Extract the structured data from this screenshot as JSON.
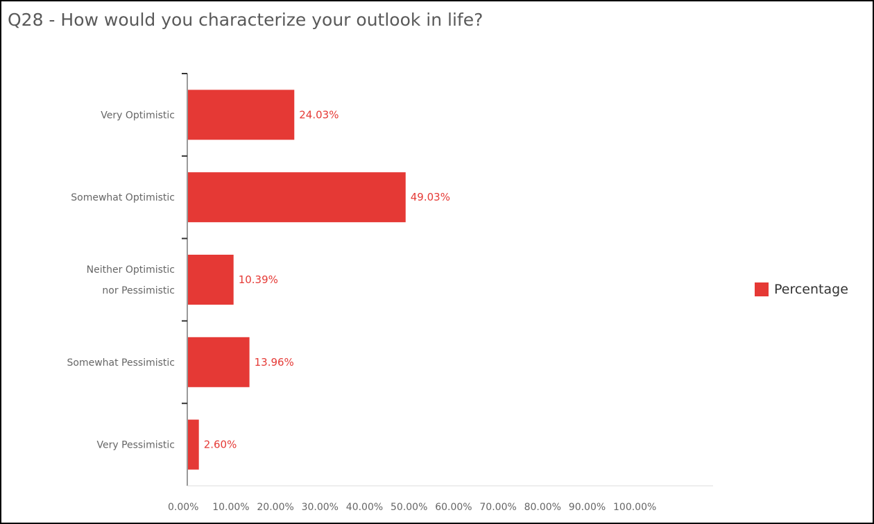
{
  "title": "Q28 - How would you characterize your outlook in life?",
  "chart_data": {
    "type": "bar",
    "orientation": "horizontal",
    "title": "Q28 - How would you characterize your outlook in life?",
    "categories": [
      [
        "Very Optimistic"
      ],
      [
        "Somewhat Optimistic"
      ],
      [
        "Neither Optimistic",
        "nor Pessimistic"
      ],
      [
        "Somewhat Pessimistic"
      ],
      [
        "Very Pessimistic"
      ]
    ],
    "series": [
      {
        "name": "Percentage",
        "values": [
          24.03,
          49.03,
          10.39,
          13.96,
          2.6
        ],
        "labels": [
          "24.03%",
          "49.03%",
          "10.39%",
          "13.96%",
          "2.60%"
        ]
      }
    ],
    "xlim": [
      0,
      100
    ],
    "xticks": [
      "0.00%",
      "10.00%",
      "20.00%",
      "30.00%",
      "40.00%",
      "50.00%",
      "60.00%",
      "70.00%",
      "80.00%",
      "90.00%",
      "100.00%"
    ],
    "grid": false,
    "legend": "right",
    "color": "#e53935"
  }
}
